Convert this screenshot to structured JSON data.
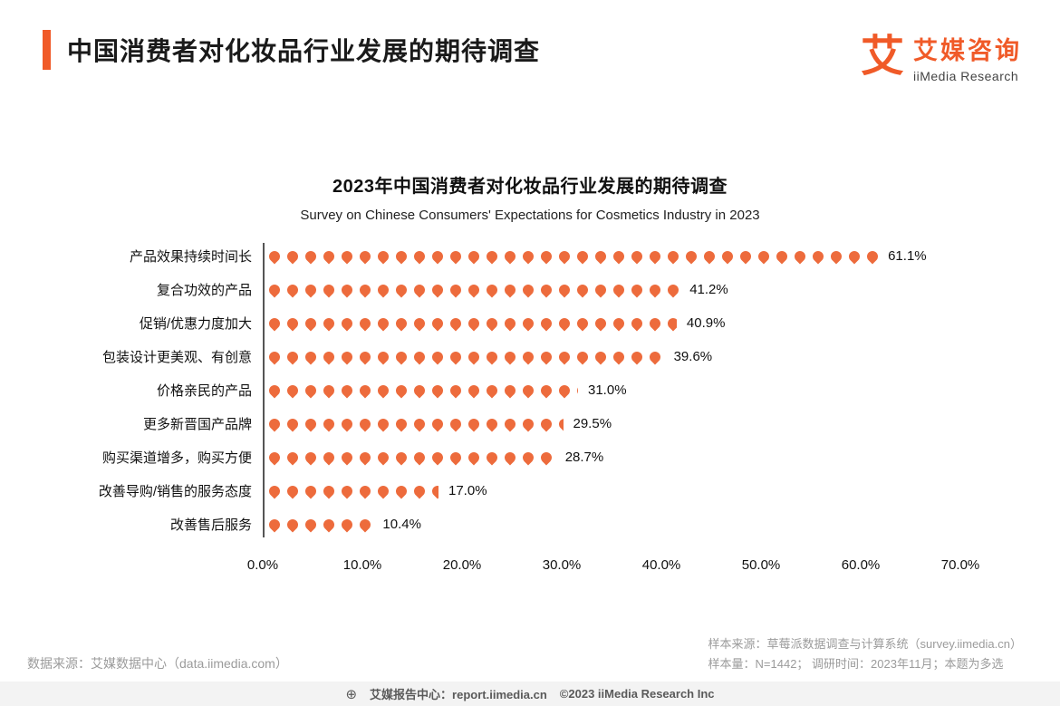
{
  "page": {
    "title": "中国消费者对化妆品行业发展的期待调查",
    "logo": {
      "mark": "艾",
      "brand_cn": "艾媒咨询",
      "brand_en": "iiMedia Research"
    }
  },
  "chart_data": {
    "type": "bar",
    "orientation": "horizontal",
    "pictogram": "pin-icon",
    "title": "2023年中国消费者对化妆品行业发展的期待调查",
    "subtitle": "Survey on Chinese Consumers' Expectations for Cosmetics Industry in 2023",
    "categories": [
      "产品效果持续时间长",
      "复合功效的产品",
      "促销/优惠力度加大",
      "包装设计更美观、有创意",
      "价格亲民的产品",
      "更多新晋国产品牌",
      "购买渠道增多，购买方便",
      "改善导购/销售的服务态度",
      "改善售后服务"
    ],
    "values": [
      61.1,
      41.2,
      40.9,
      39.6,
      31.0,
      29.5,
      28.7,
      17.0,
      10.4
    ],
    "value_labels": [
      "61.1%",
      "41.2%",
      "40.9%",
      "39.6%",
      "31.0%",
      "29.5%",
      "28.7%",
      "17.0%",
      "10.4%"
    ],
    "xlim": [
      0,
      70
    ],
    "x_ticks": [
      "0.0%",
      "10.0%",
      "20.0%",
      "30.0%",
      "40.0%",
      "50.0%",
      "60.0%",
      "70.0%"
    ],
    "bar_color": "#ED6B3C",
    "accent_color": "#F05A28",
    "grid": "off",
    "legend": "none"
  },
  "footnotes": {
    "source_left": "数据来源：艾媒数据中心（data.iimedia.com）",
    "sample_source": "样本来源：草莓派数据调查与计算系统（survey.iimedia.cn）",
    "sample_info": "样本量：N=1442； 调研时间：2023年11月；本题为多选"
  },
  "footer": {
    "globe": "⊕",
    "center": "艾媒报告中心：report.iimedia.cn",
    "copyright": "©2023  iiMedia Research Inc"
  }
}
